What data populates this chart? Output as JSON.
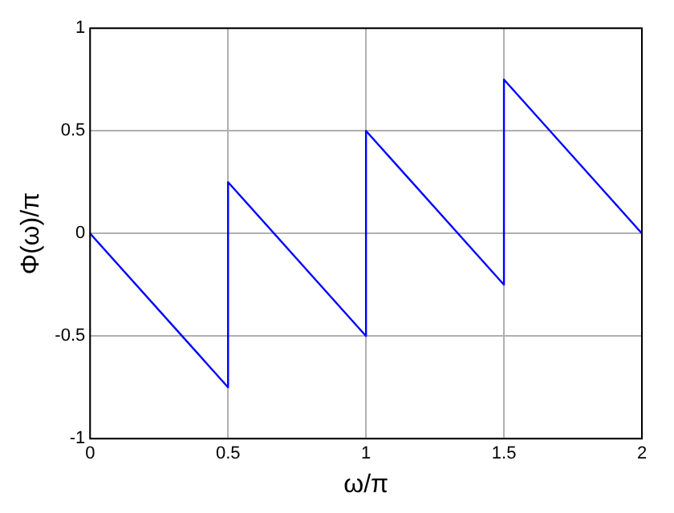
{
  "chart_data": {
    "type": "line",
    "xlabel": "ω/π",
    "ylabel": "Φ(ω)/π",
    "x": [
      0,
      0.5,
      0.5,
      1,
      1,
      1.5,
      1.5,
      2
    ],
    "series": [
      {
        "color": "#0000ff",
        "values": [
          0,
          -0.75,
          0.25,
          -0.5,
          0.5,
          -0.25,
          0.75,
          0
        ]
      }
    ],
    "xlim": [
      0,
      2
    ],
    "xticks": [
      0,
      0.5,
      1,
      1.5,
      2
    ],
    "ylim": [
      -1,
      1
    ],
    "yticks": [
      -1,
      -0.5,
      0,
      0.5,
      1
    ],
    "grid": true,
    "legend": false,
    "marker": "none",
    "line_style": "solid"
  }
}
